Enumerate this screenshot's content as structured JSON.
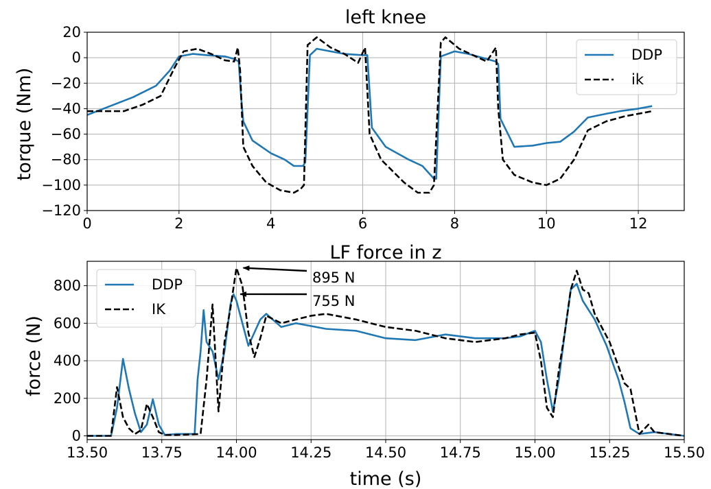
{
  "chart_data": [
    {
      "type": "line",
      "title": "left knee",
      "xlabel": "",
      "ylabel": "torque (Nm)",
      "xlim": [
        0,
        13
      ],
      "ylim": [
        -120,
        20
      ],
      "xticks": [
        "0",
        "2",
        "4",
        "6",
        "8",
        "10",
        "12"
      ],
      "yticks": [
        "−120",
        "−100",
        "−80",
        "−60",
        "−40",
        "−20",
        "0",
        "20"
      ],
      "grid": true,
      "legend": "top-right",
      "series": [
        {
          "name": "DDP",
          "color": "#1f77b4",
          "style": "solid",
          "x": [
            0,
            0.5,
            1.0,
            1.5,
            1.8,
            2.0,
            2.3,
            2.6,
            3.0,
            3.2,
            3.3,
            3.35,
            3.4,
            3.6,
            4.0,
            4.3,
            4.5,
            4.7,
            4.75,
            4.85,
            5.0,
            5.3,
            5.6,
            6.0,
            6.1,
            6.2,
            6.5,
            7.0,
            7.3,
            7.55,
            7.6,
            7.7,
            8.0,
            8.3,
            8.6,
            8.9,
            8.95,
            9.0,
            9.3,
            9.7,
            10.0,
            10.3,
            10.6,
            10.9,
            11.3,
            11.6,
            12.0,
            12.3
          ],
          "values": [
            -45,
            -38,
            -31,
            -22,
            -10,
            1,
            3,
            2,
            1,
            -1,
            -3,
            -30,
            -50,
            -65,
            -75,
            -80,
            -85,
            -85,
            -82,
            2,
            7,
            5,
            3,
            2,
            2,
            -55,
            -70,
            -80,
            -85,
            -95,
            -95,
            1,
            5,
            3,
            0,
            -3,
            -5,
            -48,
            -70,
            -69,
            -67,
            -66,
            -58,
            -47,
            -44,
            -42,
            -40,
            -38
          ]
        },
        {
          "name": "ik",
          "color": "#000000",
          "style": "dashed",
          "x": [
            0,
            0.8,
            1.2,
            1.6,
            1.9,
            2.1,
            2.4,
            2.7,
            3.0,
            3.2,
            3.28,
            3.33,
            3.4,
            3.6,
            3.9,
            4.2,
            4.5,
            4.65,
            4.72,
            4.8,
            5.0,
            5.3,
            5.6,
            5.9,
            6.05,
            6.15,
            6.4,
            6.9,
            7.2,
            7.45,
            7.55,
            7.7,
            7.8,
            8.1,
            8.4,
            8.7,
            8.9,
            8.95,
            9.05,
            9.3,
            9.7,
            10.0,
            10.3,
            10.6,
            10.9,
            11.3,
            11.7,
            12.0,
            12.3
          ],
          "values": [
            -42,
            -42,
            -37,
            -30,
            -8,
            5,
            7,
            3,
            -2,
            -3,
            8,
            -10,
            -70,
            -85,
            -98,
            -104,
            -106,
            -103,
            -100,
            10,
            16,
            8,
            3,
            -4,
            8,
            -60,
            -80,
            -98,
            -106,
            -106,
            -100,
            12,
            16,
            7,
            2,
            -3,
            8,
            -40,
            -80,
            -92,
            -98,
            -100,
            -95,
            -80,
            -57,
            -50,
            -46,
            -44,
            -42
          ]
        }
      ]
    },
    {
      "type": "line",
      "title": "LF force in z",
      "xlabel": "time (s)",
      "ylabel": "force (N)",
      "xlim": [
        13.5,
        15.5
      ],
      "ylim": [
        -20,
        930
      ],
      "xticks": [
        "13.50",
        "13.75",
        "14.00",
        "14.25",
        "14.50",
        "14.75",
        "15.00",
        "15.25",
        "15.50"
      ],
      "yticks": [
        "0",
        "200",
        "400",
        "600",
        "800"
      ],
      "grid": true,
      "legend": "top-left",
      "annotations": [
        {
          "text": "895 N",
          "x": 14.0,
          "y": 895
        },
        {
          "text": "755 N",
          "x": 13.99,
          "y": 755
        }
      ],
      "series": [
        {
          "name": "DDP",
          "color": "#1f77b4",
          "style": "solid",
          "x": [
            13.5,
            13.58,
            13.6,
            13.62,
            13.64,
            13.66,
            13.68,
            13.7,
            13.72,
            13.74,
            13.76,
            13.8,
            13.86,
            13.87,
            13.88,
            13.89,
            13.9,
            13.92,
            13.94,
            13.96,
            13.98,
            13.99,
            14.0,
            14.02,
            14.04,
            14.06,
            14.08,
            14.1,
            14.15,
            14.2,
            14.3,
            14.4,
            14.5,
            14.6,
            14.7,
            14.8,
            14.9,
            14.95,
            15.0,
            15.02,
            15.04,
            15.06,
            15.08,
            15.1,
            15.12,
            15.14,
            15.16,
            15.2,
            15.24,
            15.28,
            15.3,
            15.32,
            15.35,
            15.4,
            15.45,
            15.5
          ],
          "values": [
            0,
            0,
            150,
            410,
            250,
            120,
            20,
            60,
            195,
            60,
            5,
            10,
            10,
            300,
            450,
            670,
            500,
            450,
            300,
            450,
            700,
            755,
            720,
            600,
            480,
            550,
            620,
            650,
            580,
            600,
            570,
            560,
            520,
            510,
            540,
            520,
            520,
            530,
            560,
            500,
            300,
            130,
            300,
            550,
            780,
            810,
            720,
            620,
            480,
            300,
            180,
            40,
            10,
            20,
            10,
            0
          ]
        },
        {
          "name": "IK",
          "color": "#000000",
          "style": "dashed",
          "x": [
            13.5,
            13.58,
            13.6,
            13.62,
            13.64,
            13.66,
            13.68,
            13.7,
            13.72,
            13.74,
            13.76,
            13.8,
            13.88,
            13.9,
            13.92,
            13.94,
            13.96,
            13.98,
            14.0,
            14.02,
            14.04,
            14.06,
            14.08,
            14.1,
            14.15,
            14.2,
            14.25,
            14.3,
            14.4,
            14.5,
            14.6,
            14.7,
            14.8,
            14.9,
            14.95,
            15.0,
            15.02,
            15.04,
            15.06,
            15.08,
            15.1,
            15.12,
            15.14,
            15.16,
            15.18,
            15.2,
            15.25,
            15.3,
            15.32,
            15.35,
            15.38,
            15.4,
            15.45,
            15.5
          ],
          "values": [
            0,
            0,
            260,
            100,
            40,
            10,
            30,
            170,
            100,
            20,
            5,
            5,
            10,
            300,
            700,
            130,
            500,
            680,
            895,
            800,
            550,
            420,
            520,
            640,
            600,
            620,
            640,
            650,
            620,
            580,
            560,
            520,
            500,
            520,
            540,
            550,
            400,
            150,
            100,
            350,
            550,
            780,
            880,
            780,
            760,
            650,
            500,
            280,
            250,
            10,
            60,
            20,
            10,
            0
          ]
        }
      ]
    }
  ]
}
